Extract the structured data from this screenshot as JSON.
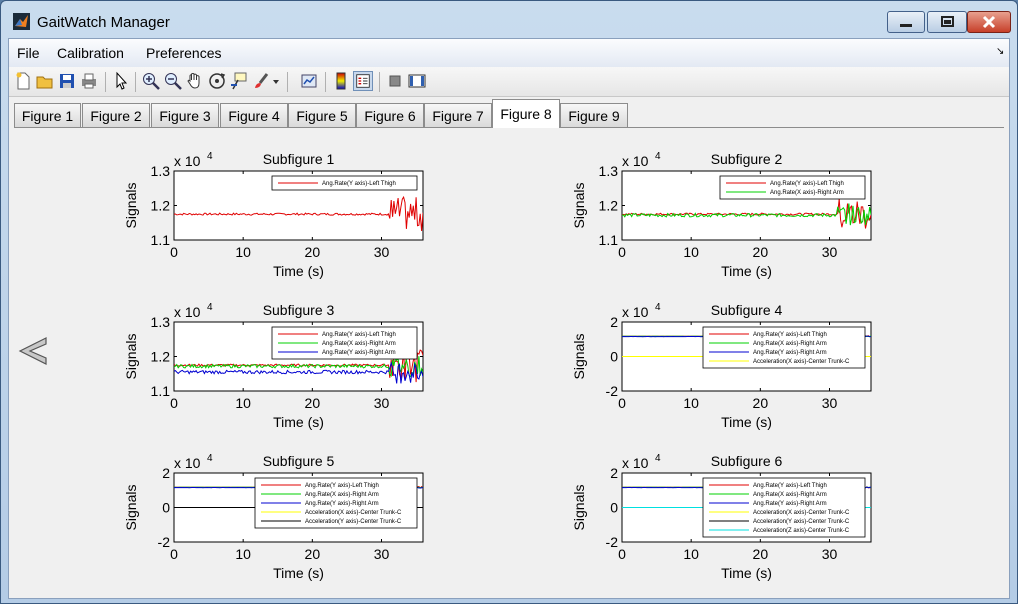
{
  "window": {
    "title": "GaitWatch Manager"
  },
  "menu": {
    "items": [
      "File",
      "Calibration",
      "Preferences"
    ]
  },
  "toolbar": {
    "buttons": [
      "new-figure-icon",
      "open-file-icon",
      "save-icon",
      "print-icon",
      "pointer-icon",
      "zoom-in-icon",
      "zoom-out-icon",
      "pan-hand-icon",
      "rotate-3d-icon",
      "data-cursor-icon",
      "brush-icon",
      "brush-dropdown-icon",
      "link-plot-icon",
      "colorbar-icon",
      "legend-icon",
      "hide-plot-tools-icon",
      "show-plot-tools-icon"
    ]
  },
  "tabs": {
    "items": [
      "Figure 1",
      "Figure 2",
      "Figure 3",
      "Figure 4",
      "Figure 5",
      "Figure 6",
      "Figure 7",
      "Figure 8",
      "Figure 9"
    ],
    "active": "Figure 8"
  },
  "colors": {
    "thigh": "#e00000",
    "arm_x": "#00d000",
    "arm_y": "#0000d0",
    "acc_x": "#ffff00",
    "acc_y": "#000000",
    "acc_z": "#00e0e0"
  },
  "chart_data": [
    {
      "type": "line",
      "title": "Subfigure 1",
      "exponent": "x 10",
      "exponent_power": "4",
      "xlabel": "Time (s)",
      "ylabel": "Signals",
      "xlim": [
        0,
        36
      ],
      "ylim": [
        1.1,
        1.3
      ],
      "xticks": [
        "0",
        "10",
        "20",
        "30"
      ],
      "yticks": [
        "1.1",
        "1.2",
        "1.3"
      ],
      "series": [
        {
          "name": "Ang.Rate(Y axis)-Left Thigh",
          "color": "#e00000",
          "base": 1.175,
          "noise": 0.003,
          "burst": 0.05
        }
      ]
    },
    {
      "type": "line",
      "title": "Subfigure 2",
      "exponent": "x 10",
      "exponent_power": "4",
      "xlabel": "Time (s)",
      "ylabel": "Signals",
      "xlim": [
        0,
        36
      ],
      "ylim": [
        1.1,
        1.3
      ],
      "xticks": [
        "0",
        "10",
        "20",
        "30"
      ],
      "yticks": [
        "1.1",
        "1.2",
        "1.3"
      ],
      "series": [
        {
          "name": "Ang.Rate(Y axis)-Left Thigh",
          "color": "#e00000",
          "base": 1.175,
          "noise": 0.003,
          "burst": 0.05
        },
        {
          "name": "Ang.Rate(X axis)-Right Arm",
          "color": "#00d000",
          "base": 1.172,
          "noise": 0.005,
          "burst": 0.03
        }
      ]
    },
    {
      "type": "line",
      "title": "Subfigure 3",
      "exponent": "x 10",
      "exponent_power": "4",
      "xlabel": "Time (s)",
      "ylabel": "Signals",
      "xlim": [
        0,
        36
      ],
      "ylim": [
        1.1,
        1.3
      ],
      "xticks": [
        "0",
        "10",
        "20",
        "30"
      ],
      "yticks": [
        "1.1",
        "1.2",
        "1.3"
      ],
      "series": [
        {
          "name": "Ang.Rate(Y axis)-Left Thigh",
          "color": "#e00000",
          "base": 1.175,
          "noise": 0.003,
          "burst": 0.05
        },
        {
          "name": "Ang.Rate(X axis)-Right Arm",
          "color": "#00d000",
          "base": 1.172,
          "noise": 0.005,
          "burst": 0.03
        },
        {
          "name": "Ang.Rate(Y axis)-Right Arm",
          "color": "#0000d0",
          "base": 1.155,
          "noise": 0.005,
          "burst": 0.03
        }
      ]
    },
    {
      "type": "line",
      "title": "Subfigure 4",
      "exponent": "x 10",
      "exponent_power": "4",
      "xlabel": "Time (s)",
      "ylabel": "Signals",
      "xlim": [
        0,
        36
      ],
      "ylim": [
        -2,
        2
      ],
      "xticks": [
        "0",
        "10",
        "20",
        "30"
      ],
      "yticks": [
        "-2",
        "0",
        "2"
      ],
      "series": [
        {
          "name": "Ang.Rate(Y axis)-Left Thigh",
          "color": "#e00000",
          "base": 1.175,
          "noise": 0.003,
          "burst": 0.05
        },
        {
          "name": "Ang.Rate(X axis)-Right Arm",
          "color": "#00d000",
          "base": 1.172,
          "noise": 0.005,
          "burst": 0.03
        },
        {
          "name": "Ang.Rate(Y axis)-Right Arm",
          "color": "#0000d0",
          "base": 1.155,
          "noise": 0.005,
          "burst": 0.03
        },
        {
          "name": "Acceleration(X axis)-Center Trunk-C",
          "color": "#ffff00",
          "base": 0.0,
          "noise": 0.0,
          "burst": 0.0
        }
      ]
    },
    {
      "type": "line",
      "title": "Subfigure 5",
      "exponent": "x 10",
      "exponent_power": "4",
      "xlabel": "Time (s)",
      "ylabel": "Signals",
      "xlim": [
        0,
        36
      ],
      "ylim": [
        -2,
        2
      ],
      "xticks": [
        "0",
        "10",
        "20",
        "30"
      ],
      "yticks": [
        "-2",
        "0",
        "2"
      ],
      "series": [
        {
          "name": "Ang.Rate(Y axis)-Left Thigh",
          "color": "#e00000",
          "base": 1.175,
          "noise": 0.003,
          "burst": 0.05
        },
        {
          "name": "Ang.Rate(X axis)-Right Arm",
          "color": "#00d000",
          "base": 1.172,
          "noise": 0.005,
          "burst": 0.03
        },
        {
          "name": "Ang.Rate(Y axis)-Right Arm",
          "color": "#0000d0",
          "base": 1.155,
          "noise": 0.005,
          "burst": 0.03
        },
        {
          "name": "Acceleration(X axis)-Center Trunk-C",
          "color": "#ffff00",
          "base": 0.0,
          "noise": 0.0,
          "burst": 0.0
        },
        {
          "name": "Acceleration(Y axis)-Center Trunk-C",
          "color": "#000000",
          "base": 0.0,
          "noise": 0.0,
          "burst": 0.0
        }
      ]
    },
    {
      "type": "line",
      "title": "Subfigure 6",
      "exponent": "x 10",
      "exponent_power": "4",
      "xlabel": "Time (s)",
      "ylabel": "Signals",
      "xlim": [
        0,
        36
      ],
      "ylim": [
        -2,
        2
      ],
      "xticks": [
        "0",
        "10",
        "20",
        "30"
      ],
      "yticks": [
        "-2",
        "0",
        "2"
      ],
      "series": [
        {
          "name": "Ang.Rate(Y axis)-Left Thigh",
          "color": "#e00000",
          "base": 1.175,
          "noise": 0.003,
          "burst": 0.05
        },
        {
          "name": "Ang.Rate(X axis)-Right Arm",
          "color": "#00d000",
          "base": 1.172,
          "noise": 0.005,
          "burst": 0.03
        },
        {
          "name": "Ang.Rate(Y axis)-Right Arm",
          "color": "#0000d0",
          "base": 1.155,
          "noise": 0.005,
          "burst": 0.03
        },
        {
          "name": "Acceleration(X axis)-Center Trunk-C",
          "color": "#ffff00",
          "base": 0.0,
          "noise": 0.0,
          "burst": 0.0
        },
        {
          "name": "Acceleration(Y axis)-Center Trunk-C",
          "color": "#000000",
          "base": 0.0,
          "noise": 0.0,
          "burst": 0.0
        },
        {
          "name": "Acceleration(Z axis)-Center Trunk-C",
          "color": "#00e0e0",
          "base": 0.0,
          "noise": 0.0,
          "burst": 0.0
        }
      ]
    }
  ]
}
